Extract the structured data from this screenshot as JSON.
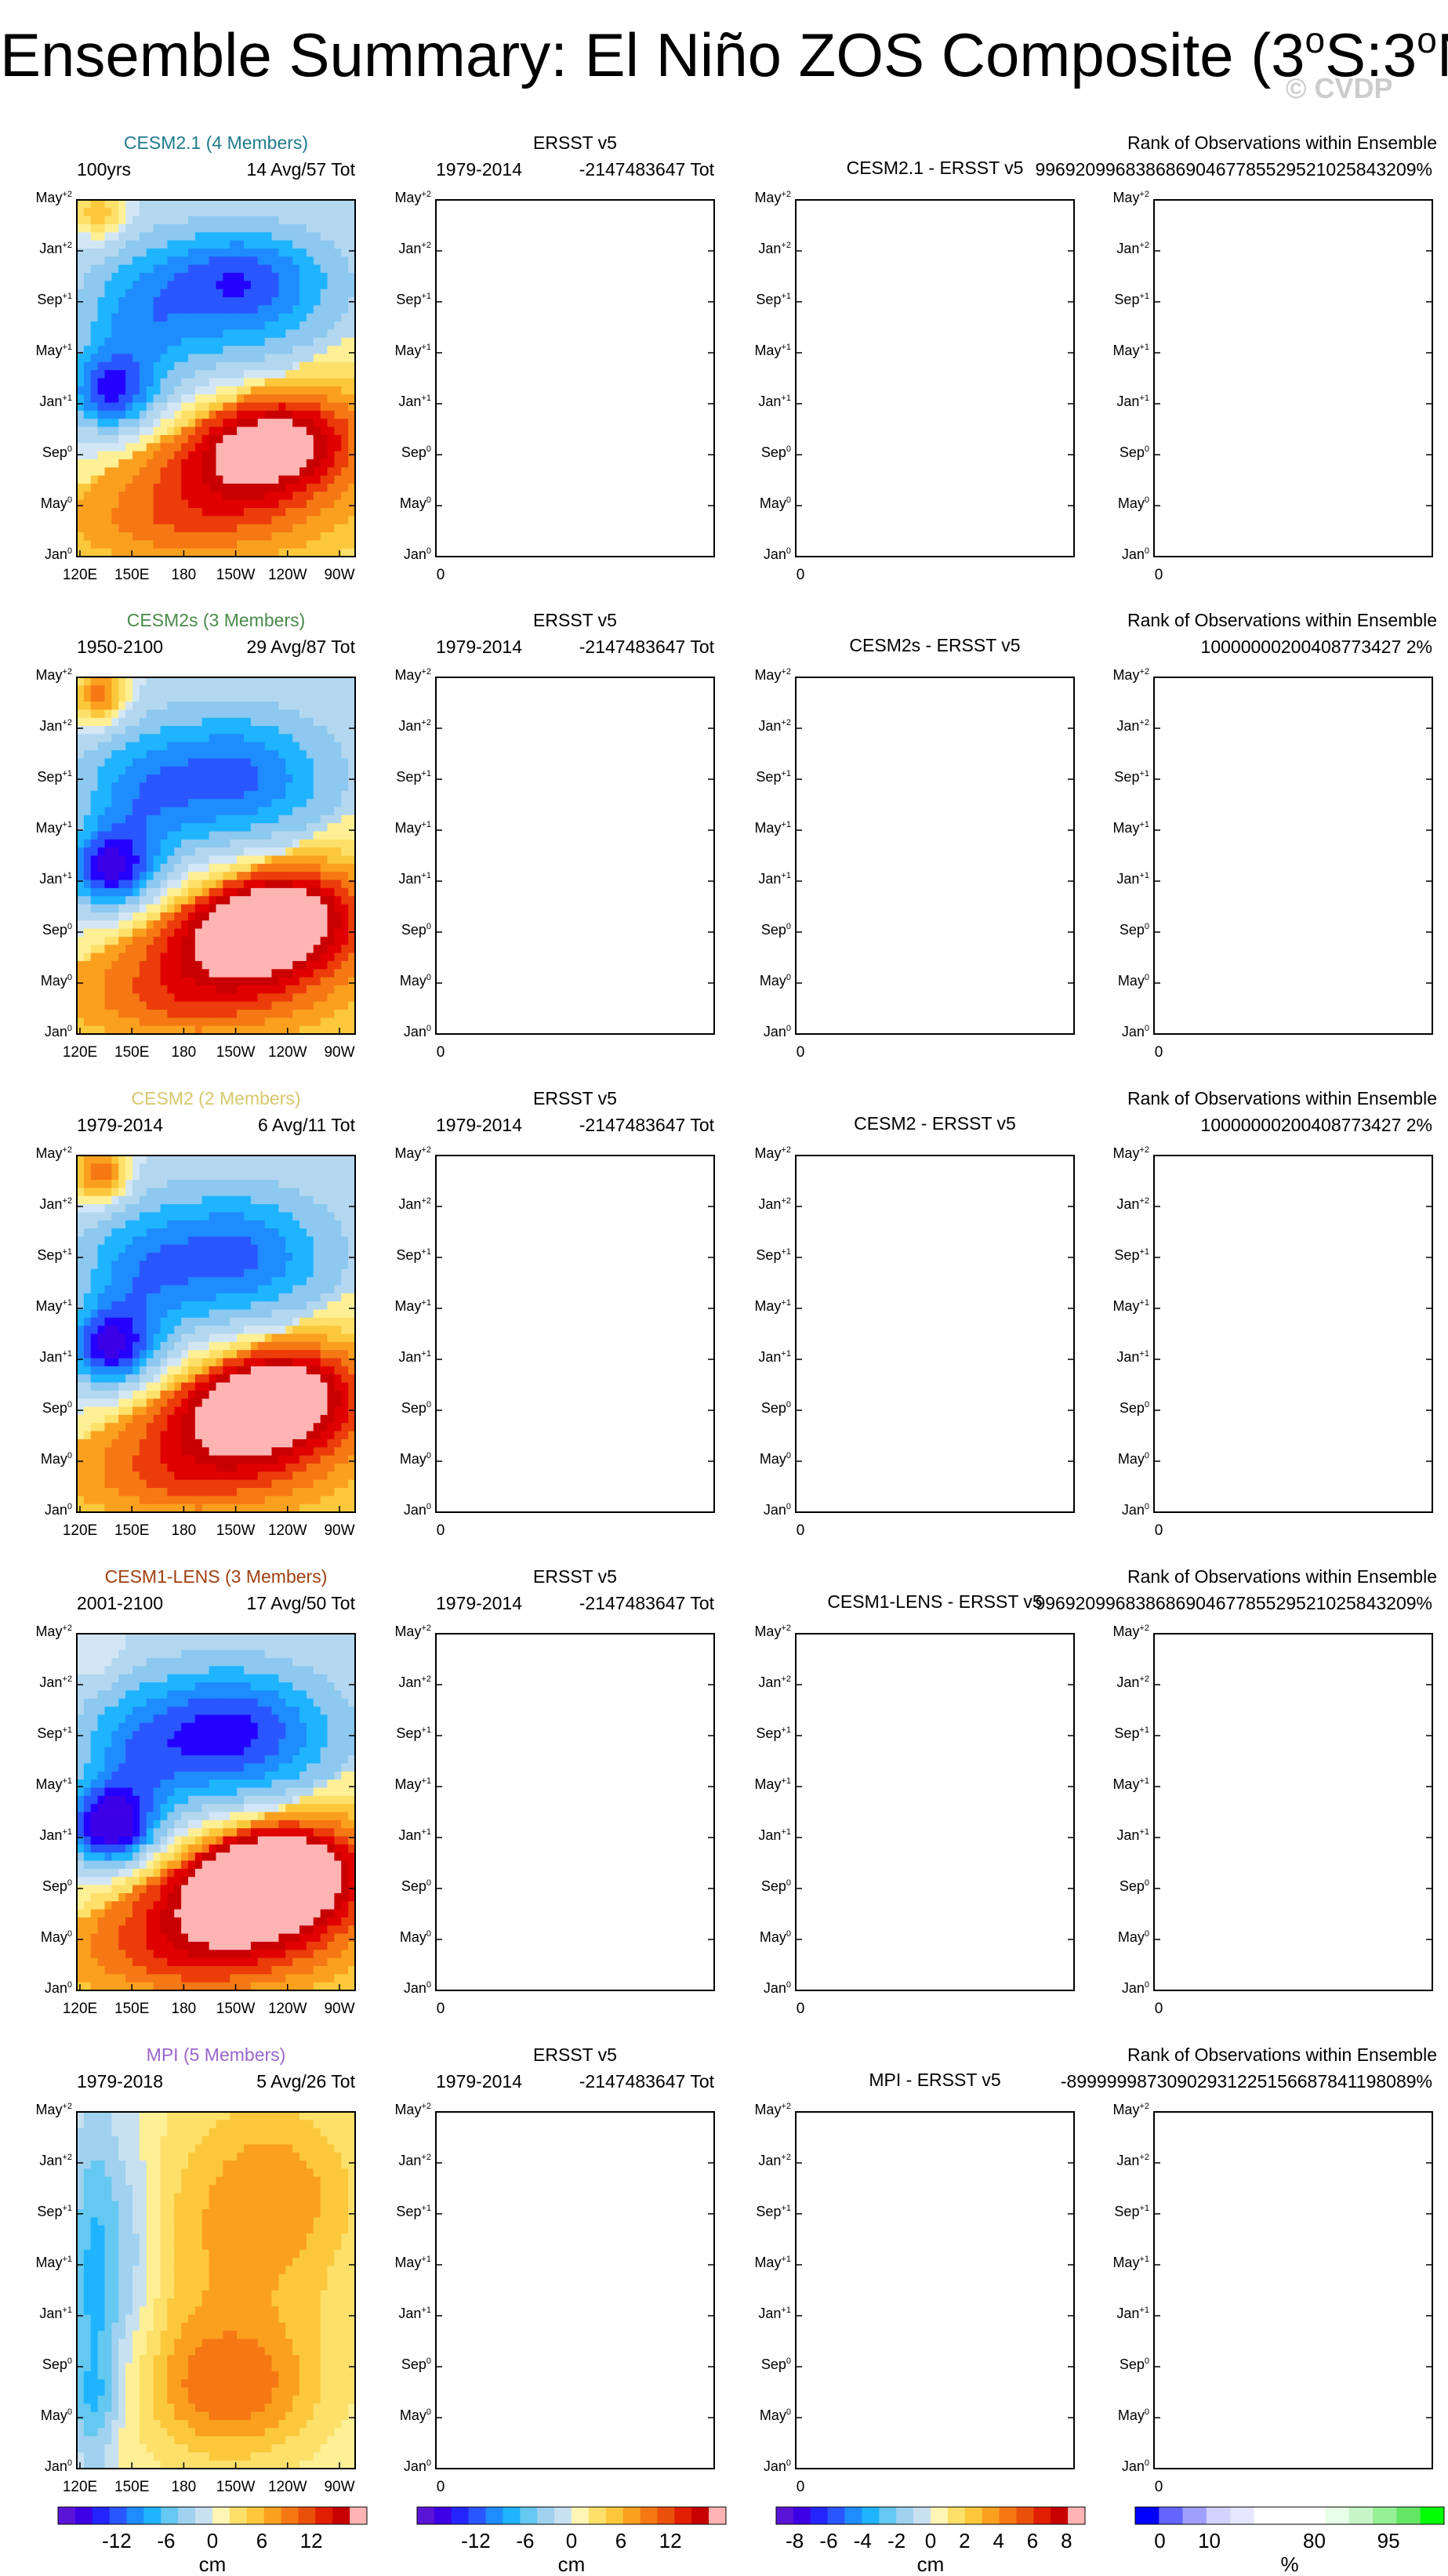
{
  "page": {
    "title_main": "Ensemble Summary: El Niño ZOS Composite (3",
    "title_deg": "o",
    "title_mid": "S:3",
    "title_end": "N)",
    "watermark": "© CVDP"
  },
  "colors": {
    "model_names": [
      "#1f7a8c",
      "#4a8a4a",
      "#d6c86a",
      "#a04010",
      "#9966cc"
    ],
    "fill_scale": [
      "#3d00e6",
      "#2400ff",
      "#2a56ff",
      "#1e8cff",
      "#1eb4ff",
      "#8cc8f0",
      "#b4d7f0",
      "#d2e6f5",
      "#fff096",
      "#fde06a",
      "#fbc83c",
      "#fba01e",
      "#f57814",
      "#eb3c0a",
      "#e10000",
      "#c80000",
      "#ffb4b4"
    ]
  },
  "chart_data": {
    "type": "heatmap",
    "ylabels": [
      "Jan",
      "May",
      "Sep",
      "Jan",
      "May",
      "Sep",
      "Jan",
      "May"
    ],
    "ylabel_sups": [
      "0",
      "0",
      "0",
      "+1",
      "+1",
      "+1",
      "+2",
      "+2"
    ],
    "xlabels": [
      "120E",
      "150E",
      "180",
      "150W",
      "120W",
      "90W"
    ],
    "xlabel_zero": "0",
    "rows": [
      {
        "model_name": "CESM2.1 (4 Members)",
        "model_years": "100yrs",
        "model_stats": "14 Avg/57 Tot",
        "obs_title": "ERSST v5",
        "obs_years": "1979-2014",
        "obs_stats": "-2147483647 Tot",
        "diff_title": "CESM2.1 - ERSST v5",
        "rank_title": "Rank of Observations within Ensemble",
        "rank_value": "99692099683868690467785529521025843209%"
      },
      {
        "model_name": "CESM2s (3 Members)",
        "model_years": "1950-2100",
        "model_stats": "29 Avg/87 Tot",
        "obs_title": "ERSST v5",
        "obs_years": "1979-2014",
        "obs_stats": "-2147483647 Tot",
        "diff_title": "CESM2s - ERSST v5",
        "rank_title": "Rank of Observations within Ensemble",
        "rank_value": "10000000200408773427 2%"
      },
      {
        "model_name": "CESM2 (2 Members)",
        "model_years": "1979-2014",
        "model_stats": "6 Avg/11 Tot",
        "obs_title": "ERSST v5",
        "obs_years": "1979-2014",
        "obs_stats": "-2147483647 Tot",
        "diff_title": "CESM2 - ERSST v5",
        "rank_title": "Rank of Observations within Ensemble",
        "rank_value": "10000000200408773427 2%"
      },
      {
        "model_name": "CESM1-LENS (3 Members)",
        "model_years": "2001-2100",
        "model_stats": "17 Avg/50 Tot",
        "obs_title": "ERSST v5",
        "obs_years": "1979-2014",
        "obs_stats": "-2147483647 Tot",
        "diff_title": "CESM1-LENS - ERSST v5",
        "rank_title": "Rank of Observations within Ensemble",
        "rank_value": "99692099683868690467785529521025843209%"
      },
      {
        "model_name": "MPI (5 Members)",
        "model_years": "1979-2018",
        "model_stats": "5 Avg/26 Tot",
        "obs_title": "ERSST v5",
        "obs_years": "1979-2014",
        "obs_stats": "-2147483647 Tot",
        "diff_title": "MPI - ERSST v5",
        "rank_title": "Rank of Observations within Ensemble",
        "rank_value": "-89999998730902931225156687841198089%"
      }
    ],
    "colorbars": [
      {
        "ticks": [
          "-12",
          "-6",
          "0",
          "6",
          "12"
        ],
        "unit": "cm"
      },
      {
        "ticks": [
          "-12",
          "-6",
          "0",
          "6",
          "12"
        ],
        "unit": "cm"
      },
      {
        "ticks": [
          "-8",
          "-6",
          "-4",
          "-2",
          "0",
          "2",
          "4",
          "6",
          "8"
        ],
        "unit": "cm"
      },
      {
        "ticks": [
          "0",
          "10",
          "80",
          "95"
        ],
        "unit": "%"
      }
    ],
    "colorbar_fills": {
      "model": [
        "#5a14d8",
        "#3d00e6",
        "#2424ff",
        "#2a56ff",
        "#1e8cff",
        "#1eb4ff",
        "#64c8f0",
        "#a0d2f0",
        "#c8e1f0",
        "#fff5b4",
        "#fde06a",
        "#fbc83c",
        "#fba01e",
        "#f57814",
        "#eb500a",
        "#e11e00",
        "#c80000",
        "#ffb4b4"
      ],
      "diff": [
        "#5a14d8",
        "#3d00e6",
        "#2424ff",
        "#2a56ff",
        "#1e8cff",
        "#1eb4ff",
        "#64c8f0",
        "#a0d2f0",
        "#c8e1f0",
        "#fff5b4",
        "#fde06a",
        "#fbc83c",
        "#fba01e",
        "#f57814",
        "#eb500a",
        "#e11e00",
        "#c80000",
        "#ffb4b4"
      ],
      "rank": [
        "#0000ff",
        "#6464ff",
        "#a0a0ff",
        "#d2d2ff",
        "#e6e6ff",
        "#ffffff",
        "#ffffff",
        "#ffffff",
        "#e6ffe6",
        "#c8f5c8",
        "#96f096",
        "#64e664",
        "#00ff00"
      ]
    }
  }
}
